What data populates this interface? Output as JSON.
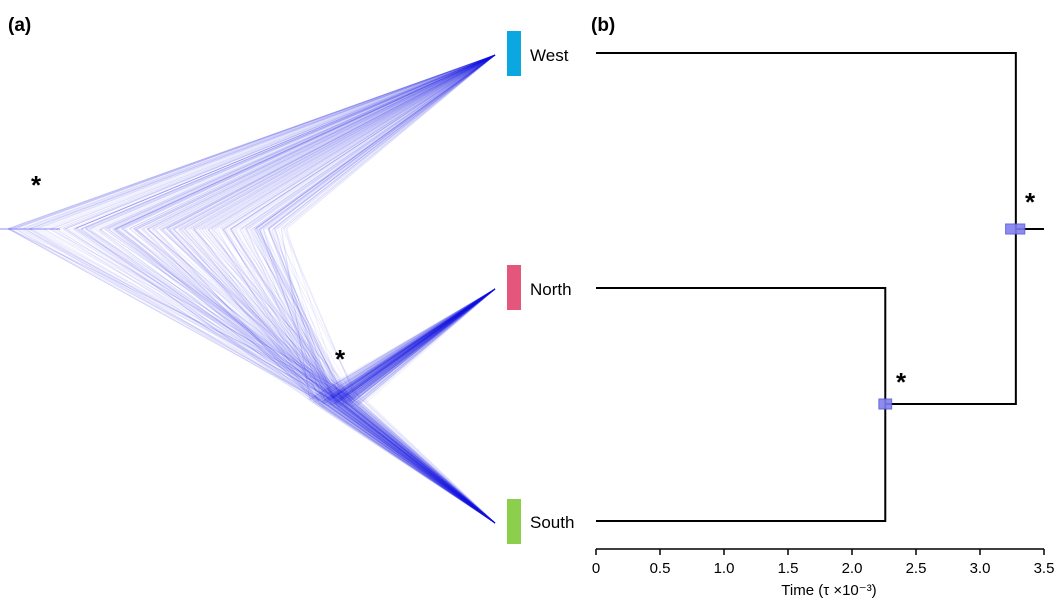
{
  "panels": {
    "a": "(a)",
    "b": "(b)"
  },
  "taxa": [
    {
      "key": "west",
      "label": "West",
      "color": "#0aa7e0"
    },
    {
      "key": "north",
      "label": "North",
      "color": "#e5567d"
    },
    {
      "key": "south",
      "label": "South",
      "color": "#8ccf4d"
    }
  ],
  "significance_marker": "*",
  "densitree_color": "#1f1fe6",
  "node_bar_color": "#7f7ff0",
  "chart_data": {
    "type": "tree",
    "xlabel": "Time (τ ×10⁻³)",
    "xlim": [
      0,
      3.5
    ],
    "xticks": [
      "0",
      "0.5",
      "1.0",
      "1.5",
      "2.0",
      "2.5",
      "3.0",
      "3.5"
    ],
    "time_direction": "age increasing to the right (tips at 0)",
    "topology": "(West,(North,South))",
    "nodes": [
      {
        "name": "root",
        "clade": "West+North+South",
        "age": 3.28,
        "interval": [
          3.2,
          3.35
        ],
        "supported": true
      },
      {
        "name": "inner",
        "clade": "North+South",
        "age": 2.26,
        "interval": [
          2.21,
          2.31
        ],
        "supported": true
      }
    ]
  }
}
